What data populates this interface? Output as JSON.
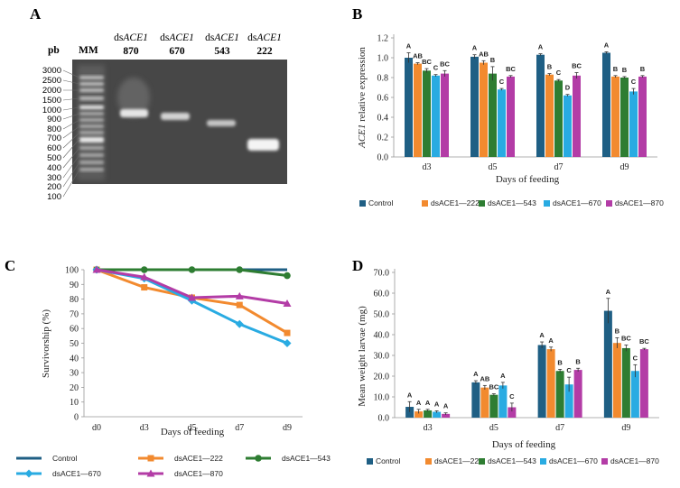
{
  "figure": {
    "panels": [
      "A",
      "B",
      "C",
      "D"
    ],
    "colors": {
      "Control": "#1f5f84",
      "dsACE1—222": "#f28a2f",
      "dsACE1—543": "#2e7d32",
      "dsACE1—670": "#29abe2",
      "dsACE1—870": "#b33ca6"
    }
  },
  "gel": {
    "unit_label": "pb",
    "marker_label": "MM",
    "marker_sizes": [
      "3000",
      "2500",
      "2000",
      "1500",
      "1000",
      "900",
      "800",
      "700",
      "600",
      "500",
      "400",
      "300",
      "200",
      "100"
    ],
    "lanes": [
      {
        "prefix": "ds",
        "gene": "ACE1",
        "size": "870"
      },
      {
        "prefix": "ds",
        "gene": "ACE1",
        "size": "670"
      },
      {
        "prefix": "ds",
        "gene": "ACE1",
        "size": "543"
      },
      {
        "prefix": "ds",
        "gene": "ACE1",
        "size": "222"
      }
    ]
  },
  "chart_data": [
    {
      "panel": "B",
      "type": "bar",
      "categories": [
        "d3",
        "d5",
        "d7",
        "d9"
      ],
      "series": [
        {
          "name": "Control",
          "values": [
            1.0,
            1.01,
            1.03,
            1.05
          ],
          "errors": [
            0.05,
            0.02,
            0.01,
            0.01
          ],
          "letters": [
            "A",
            "A",
            "A",
            "A"
          ]
        },
        {
          "name": "dsACE1—222",
          "values": [
            0.94,
            0.95,
            0.83,
            0.81
          ],
          "errors": [
            0.01,
            0.02,
            0.01,
            0.01
          ],
          "letters": [
            "AB",
            "AB",
            "B",
            "B"
          ]
        },
        {
          "name": "dsACE1—543",
          "values": [
            0.87,
            0.84,
            0.77,
            0.8
          ],
          "errors": [
            0.02,
            0.07,
            0.01,
            0.01
          ],
          "letters": [
            "BC",
            "B",
            "C",
            "B"
          ]
        },
        {
          "name": "dsACE1—670",
          "values": [
            0.82,
            0.68,
            0.62,
            0.66
          ],
          "errors": [
            0.01,
            0.01,
            0.01,
            0.03
          ],
          "letters": [
            "C",
            "C",
            "D",
            "C"
          ]
        },
        {
          "name": "dsACE1—870",
          "values": [
            0.84,
            0.81,
            0.82,
            0.81
          ],
          "errors": [
            0.03,
            0.01,
            0.03,
            0.01
          ],
          "letters": [
            "BC",
            "BC",
            "BC",
            "B"
          ]
        }
      ],
      "xlabel": "Days of feeding",
      "ylabel_gene": "ACE1",
      "ylabel_rest": " relative expression",
      "ylim": [
        0,
        1.2
      ],
      "yticks": [
        "0.0",
        "0.2",
        "0.4",
        "0.6",
        "0.8",
        "1.0",
        "1.2"
      ],
      "legend_position": "bottom"
    },
    {
      "panel": "C",
      "type": "line",
      "x": [
        "d0",
        "d3",
        "d5",
        "d7",
        "d9"
      ],
      "series": [
        {
          "name": "Control",
          "values": [
            100,
            100,
            100,
            100,
            100
          ],
          "marker": "none"
        },
        {
          "name": "dsACE1—222",
          "values": [
            100,
            88,
            81,
            76,
            57
          ],
          "marker": "square"
        },
        {
          "name": "dsACE1—543",
          "values": [
            100,
            100,
            100,
            100,
            96
          ],
          "marker": "circle"
        },
        {
          "name": "dsACE1—670",
          "values": [
            100,
            94,
            79,
            63,
            50
          ],
          "marker": "diamond"
        },
        {
          "name": "dsACE1—870",
          "values": [
            100,
            95,
            81,
            82,
            77
          ],
          "marker": "triangle"
        }
      ],
      "xlabel": "Days of feeding",
      "ylabel": "Survivorship (%)",
      "ylim": [
        0,
        100
      ],
      "yticks": [
        "0",
        "10",
        "20",
        "30",
        "40",
        "50",
        "60",
        "70",
        "80",
        "90",
        "100"
      ],
      "legend_position": "bottom"
    },
    {
      "panel": "D",
      "type": "bar",
      "categories": [
        "d3",
        "d5",
        "d7",
        "d9"
      ],
      "series": [
        {
          "name": "Control",
          "values": [
            5.2,
            17.0,
            35.0,
            51.5
          ],
          "errors": [
            2.5,
            0.8,
            1.5,
            6.0
          ],
          "letters": [
            "A",
            "A",
            "A",
            "A"
          ]
        },
        {
          "name": "dsACE1—222",
          "values": [
            3.0,
            14.5,
            33.0,
            36.0
          ],
          "errors": [
            1.0,
            1.0,
            1.0,
            2.5
          ],
          "letters": [
            "A",
            "AB",
            "A",
            "B"
          ]
        },
        {
          "name": "dsACE1—543",
          "values": [
            3.5,
            11.0,
            22.5,
            33.5
          ],
          "errors": [
            0.5,
            0.5,
            0.8,
            1.5
          ],
          "letters": [
            "A",
            "BC",
            "B",
            "BC"
          ]
        },
        {
          "name": "dsACE1—670",
          "values": [
            2.8,
            15.5,
            16.0,
            22.5
          ],
          "errors": [
            0.5,
            1.5,
            3.5,
            3.0
          ],
          "letters": [
            "A",
            "A",
            "C",
            "C"
          ]
        },
        {
          "name": "dsACE1—870",
          "values": [
            1.8,
            5.0,
            23.0,
            33.0
          ],
          "errors": [
            0.5,
            2.0,
            0.8,
            0.4
          ],
          "letters": [
            "A",
            "C",
            "B",
            "BC"
          ]
        }
      ],
      "xlabel": "Days of feeding",
      "ylabel": "Mean weight larvae (mg)",
      "ylim": [
        0,
        70
      ],
      "yticks": [
        "0.0",
        "10.0",
        "20.0",
        "30.0",
        "40.0",
        "50.0",
        "60.0",
        "70.0"
      ],
      "legend_position": "bottom"
    }
  ]
}
